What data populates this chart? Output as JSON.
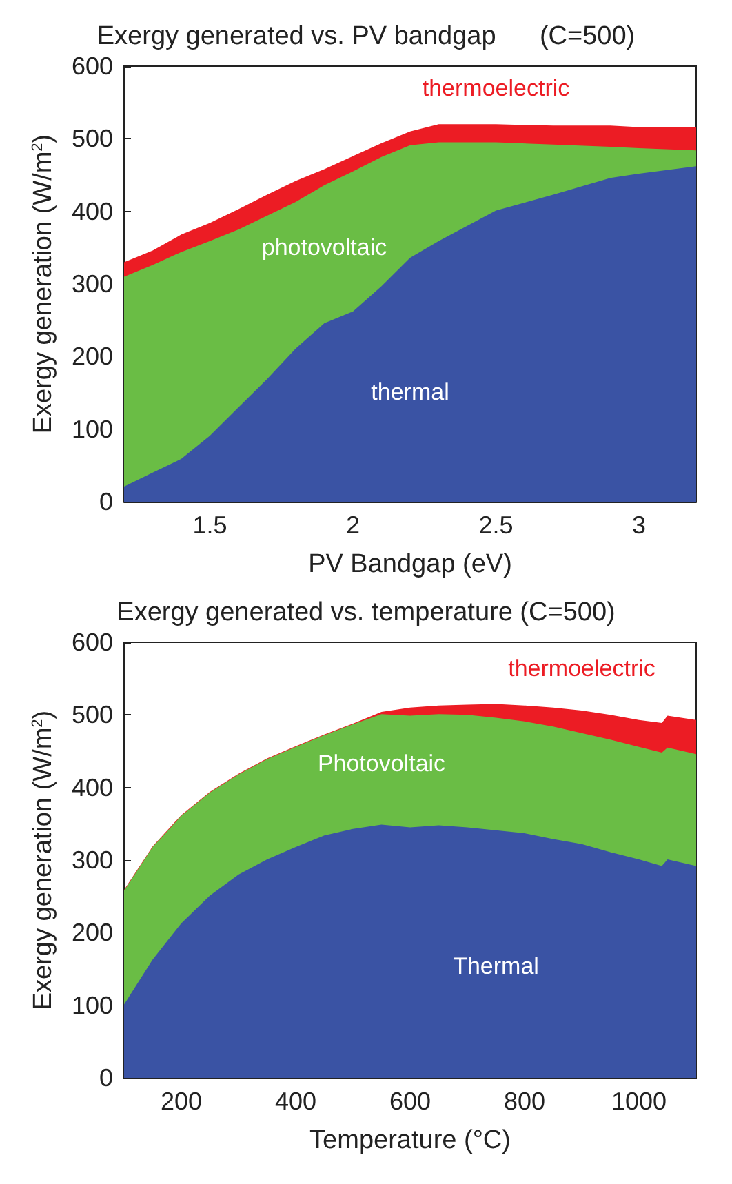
{
  "chart_data": [
    {
      "type": "area",
      "stacked": true,
      "title": "Exergy generated vs. PV bandgap      (C=500)",
      "xlabel": "PV Bandgap (eV)",
      "ylabel": "Exergy generation (W/m$^{2}$)",
      "xlim": [
        1.2,
        3.2
      ],
      "xticks": [
        1.5,
        2,
        2.5,
        3
      ],
      "ylim": [
        0,
        600
      ],
      "yticks": [
        0,
        100,
        200,
        300,
        400,
        500,
        600
      ],
      "grid": false,
      "legend": false,
      "x": [
        1.2,
        1.3,
        1.4,
        1.5,
        1.6,
        1.7,
        1.8,
        1.9,
        2.0,
        2.1,
        2.2,
        2.3,
        2.5,
        2.7,
        2.9,
        3.0,
        3.2
      ],
      "series": [
        {
          "name": "thermal",
          "color": "#3a53a4",
          "values": [
            21,
            40,
            59,
            91,
            130,
            169,
            211,
            246,
            262,
            297,
            336,
            359,
            401,
            423,
            446,
            452,
            462
          ]
        },
        {
          "name": "photovoltaic",
          "color": "#6abd45",
          "values": [
            289,
            286,
            285,
            268,
            245,
            225,
            202,
            190,
            193,
            178,
            155,
            136,
            94,
            69,
            43,
            35,
            22
          ]
        },
        {
          "name": "thermoelectric",
          "color": "#ec1c24",
          "values": [
            20,
            20,
            24,
            25,
            28,
            29,
            29,
            22,
            21,
            19,
            19,
            25,
            25,
            26,
            29,
            29,
            32
          ]
        }
      ]
    },
    {
      "type": "area",
      "stacked": true,
      "title": "Exergy generated vs. temperature (C=500)",
      "xlabel": "Temperature (°C)",
      "ylabel": "Exergy generation (W/m$^{2}$)",
      "xlim": [
        100,
        1100
      ],
      "xticks": [
        200,
        400,
        600,
        800,
        1000
      ],
      "ylim": [
        0,
        600
      ],
      "yticks": [
        0,
        100,
        200,
        300,
        400,
        500,
        600
      ],
      "grid": false,
      "legend": false,
      "x": [
        100,
        150,
        200,
        250,
        300,
        350,
        400,
        450,
        500,
        550,
        600,
        650,
        700,
        750,
        800,
        850,
        900,
        950,
        1000,
        1040,
        1050,
        1100
      ],
      "series": [
        {
          "name": "Thermal",
          "color": "#3a53a4",
          "values": [
            101,
            163,
            213,
            251,
            280,
            301,
            318,
            334,
            343,
            349,
            345,
            348,
            345,
            341,
            337,
            329,
            322,
            311,
            301,
            292,
            301,
            292
          ]
        },
        {
          "name": "Photovoltaic",
          "color": "#6abd45",
          "values": [
            157,
            155,
            148,
            142,
            138,
            138,
            138,
            138,
            144,
            152,
            154,
            153,
            155,
            155,
            154,
            155,
            153,
            155,
            155,
            156,
            154,
            154
          ]
        },
        {
          "name": "thermoelectric",
          "color": "#ec1c24",
          "values": [
            1,
            1,
            1,
            1,
            1,
            1,
            1,
            1,
            1,
            3,
            11,
            12,
            14,
            19,
            22,
            26,
            31,
            34,
            37,
            41,
            44,
            47
          ]
        }
      ]
    }
  ]
}
